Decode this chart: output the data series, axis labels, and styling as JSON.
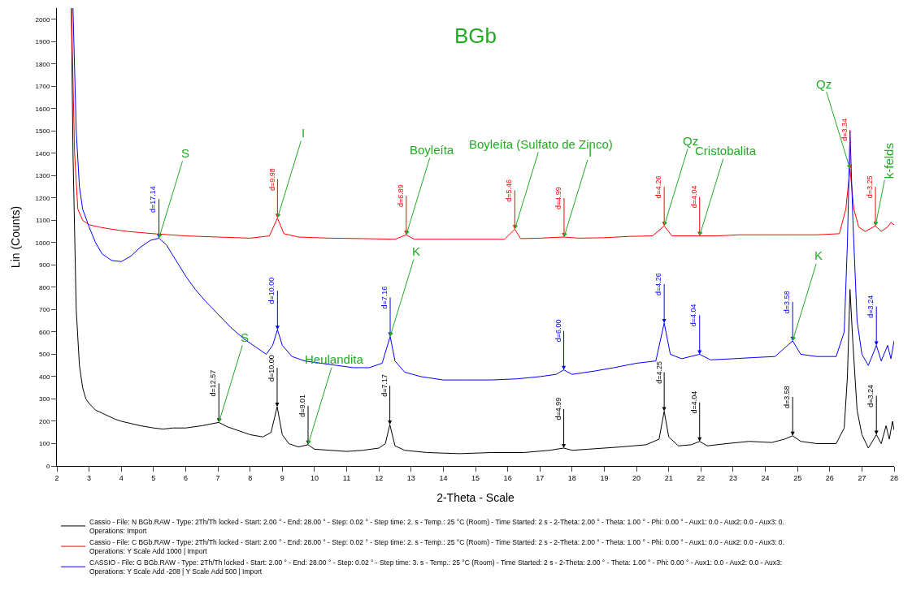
{
  "chart_data": {
    "type": "line",
    "title": "BGb",
    "xlabel": "2-Theta - Scale",
    "ylabel": "Lin (Counts)",
    "xlim": [
      2,
      28
    ],
    "xticks": [
      2,
      3,
      4,
      5,
      6,
      7,
      8,
      9,
      10,
      11,
      12,
      13,
      14,
      15,
      16,
      17,
      18,
      19,
      20,
      21,
      22,
      23,
      24,
      25,
      26,
      27,
      28
    ],
    "ylim": [
      0,
      2050
    ],
    "yticks": [
      0,
      100,
      200,
      300,
      400,
      500,
      600,
      700,
      800,
      900,
      1000,
      1100,
      1200,
      1300,
      1400,
      1500,
      1600,
      1700,
      1800,
      1900,
      2000
    ],
    "legend": "bottom",
    "marker": "none",
    "line_style": "solid",
    "series": [
      {
        "name": "Cassio - File: N BGb.RAW - Type: 2Th/Th locked - Start: 2.00 ° - End: 28.00 ° - Step: 0.02 ° - Step time: 2. s - Temp.: 25 °C (Room) - Time Started: 2 s - 2-Theta: 2.00 ° - Theta: 1.00 ° - Phi: 0.00 ° - Aux1: 0.0 - Aux2: 0.0 - Aux3: 0.\nOperations: Import",
        "color": "#000000",
        "x": [
          2.45,
          2.5,
          2.6,
          2.7,
          2.8,
          2.9,
          3.0,
          3.2,
          3.5,
          3.8,
          4.0,
          4.3,
          4.6,
          5.0,
          5.3,
          5.6,
          6.0,
          6.5,
          7.03,
          7.3,
          7.6,
          8.0,
          8.4,
          8.65,
          8.84,
          9.0,
          9.2,
          9.5,
          9.8,
          10.0,
          10.5,
          11.0,
          11.5,
          12.0,
          12.2,
          12.34,
          12.5,
          12.8,
          13.5,
          14.5,
          15.5,
          16.5,
          17.3,
          17.74,
          18.0,
          18.5,
          19.5,
          20.3,
          20.7,
          20.86,
          21.0,
          21.3,
          21.7,
          21.96,
          22.2,
          22.8,
          23.5,
          24.2,
          24.6,
          24.85,
          25.1,
          25.6,
          26.2,
          26.45,
          26.55,
          26.63,
          26.72,
          26.85,
          27.0,
          27.2,
          27.45,
          27.6,
          27.75,
          27.85,
          27.95,
          28.0
        ],
        "values": [
          2050,
          1400,
          700,
          450,
          350,
          300,
          280,
          250,
          230,
          210,
          200,
          190,
          180,
          170,
          165,
          170,
          170,
          180,
          195,
          175,
          160,
          140,
          130,
          150,
          265,
          140,
          100,
          85,
          95,
          75,
          70,
          65,
          70,
          80,
          100,
          185,
          90,
          70,
          60,
          55,
          60,
          60,
          70,
          80,
          70,
          75,
          85,
          95,
          120,
          245,
          130,
          90,
          95,
          110,
          90,
          100,
          110,
          105,
          120,
          135,
          110,
          100,
          100,
          170,
          400,
          790,
          550,
          250,
          140,
          80,
          140,
          100,
          180,
          120,
          200,
          160
        ]
      },
      {
        "name": "Cassio - File: C BGb.RAW - Type: 2Th/Th locked - Start: 2.00 ° - End: 28.00 ° - Step: 0.02 ° - Step time: 2. s - Temp.: 25 °C (Room) - Time Started: 2 s - 2-Theta: 2.00 ° - Theta: 1.00 ° - Phi: 0.00 ° - Aux1: 0.0 - Aux2: 0.0 - Aux3: 0.\nOperations: Y Scale Add 1000 | Import",
        "color": "#ff0000",
        "x": [
          2.45,
          2.55,
          2.65,
          2.8,
          3.0,
          3.3,
          3.7,
          4.2,
          5.0,
          6.0,
          7.0,
          8.0,
          8.6,
          8.85,
          9.05,
          9.5,
          10.5,
          11.5,
          12.5,
          12.85,
          13.1,
          14.0,
          15.0,
          15.9,
          16.22,
          16.4,
          17.0,
          17.75,
          18.2,
          19.0,
          19.8,
          20.5,
          20.86,
          21.1,
          21.96,
          22.5,
          23.2,
          24.0,
          24.8,
          25.6,
          26.3,
          26.5,
          26.63,
          26.75,
          26.9,
          27.1,
          27.42,
          27.6,
          27.8,
          27.9,
          28.0
        ],
        "values": [
          2050,
          1400,
          1150,
          1100,
          1080,
          1070,
          1060,
          1050,
          1040,
          1030,
          1025,
          1020,
          1030,
          1110,
          1040,
          1025,
          1020,
          1018,
          1015,
          1035,
          1015,
          1015,
          1015,
          1015,
          1060,
          1018,
          1020,
          1025,
          1020,
          1022,
          1028,
          1030,
          1075,
          1030,
          1030,
          1030,
          1035,
          1035,
          1035,
          1035,
          1040,
          1150,
          1330,
          1150,
          1070,
          1050,
          1075,
          1050,
          1070,
          1090,
          1080
        ]
      },
      {
        "name": "CASSIO - File: G BGb.RAW - Type: 2Th/Th locked - Start: 2.00 ° - End: 28.00 ° - Step: 0.02 ° - Step time: 3. s - Temp.: 25 °C (Room) - Time Started: 2 s - 2-Theta: 2.00 ° - Theta: 1.00 ° - Phi: 0.00 ° - Aux1: 0.0 - Aux2: 0.0 - Aux3:\nOperations: Y Scale Add -208 | Y Scale Add 500 | Import",
        "color": "#0000ff",
        "x": [
          2.5,
          2.6,
          2.7,
          2.8,
          3.0,
          3.2,
          3.4,
          3.7,
          4.0,
          4.3,
          4.6,
          4.9,
          5.17,
          5.4,
          5.7,
          6.0,
          6.3,
          6.6,
          7.0,
          7.4,
          7.8,
          8.2,
          8.5,
          8.7,
          8.85,
          9.0,
          9.3,
          9.7,
          10.2,
          10.7,
          11.2,
          11.7,
          12.1,
          12.35,
          12.5,
          12.8,
          13.3,
          14.0,
          14.7,
          15.5,
          16.3,
          17.0,
          17.5,
          17.74,
          18.0,
          18.7,
          19.3,
          20.0,
          20.6,
          20.86,
          21.05,
          21.4,
          21.96,
          22.3,
          23.0,
          23.6,
          24.3,
          24.85,
          25.1,
          25.6,
          26.2,
          26.45,
          26.55,
          26.63,
          26.72,
          26.85,
          27.0,
          27.2,
          27.45,
          27.6,
          27.8,
          27.9,
          28.0
        ],
        "values": [
          2050,
          1500,
          1250,
          1150,
          1070,
          1000,
          950,
          920,
          915,
          940,
          980,
          1010,
          1020,
          990,
          920,
          850,
          790,
          740,
          680,
          620,
          570,
          530,
          500,
          540,
          610,
          540,
          490,
          470,
          460,
          450,
          440,
          440,
          460,
          580,
          470,
          420,
          400,
          385,
          385,
          385,
          390,
          400,
          410,
          430,
          410,
          425,
          440,
          460,
          470,
          640,
          500,
          480,
          500,
          475,
          480,
          485,
          490,
          560,
          500,
          490,
          490,
          600,
          1000,
          1500,
          1100,
          650,
          500,
          450,
          540,
          470,
          540,
          480,
          560
        ]
      }
    ],
    "annotations": [
      {
        "text": "d=12.57",
        "x": 7.03,
        "y": 195
      },
      {
        "text": "d=10.00",
        "x": 8.84,
        "y": 265
      },
      {
        "text": "d=9.01",
        "x": 9.8,
        "y": 95
      },
      {
        "text": "d=7.17",
        "x": 12.34,
        "y": 185
      },
      {
        "text": "d=4.99",
        "x": 17.74,
        "y": 80
      },
      {
        "text": "d=4.25",
        "x": 20.86,
        "y": 245
      },
      {
        "text": "d=4.04",
        "x": 21.96,
        "y": 110
      },
      {
        "text": "d=3.58",
        "x": 24.85,
        "y": 135
      },
      {
        "text": "d=3.24",
        "x": 27.45,
        "y": 140
      },
      {
        "text": "d=9.98",
        "x": 8.85,
        "y": 1110
      },
      {
        "text": "d=6.89",
        "x": 12.85,
        "y": 1035
      },
      {
        "text": "d=5.46",
        "x": 16.22,
        "y": 1060
      },
      {
        "text": "d=4.99",
        "x": 17.75,
        "y": 1025
      },
      {
        "text": "d=4.26",
        "x": 20.86,
        "y": 1075
      },
      {
        "text": "d=4.04",
        "x": 21.96,
        "y": 1030
      },
      {
        "text": "d=3.34",
        "x": 26.63,
        "y": 1330
      },
      {
        "text": "d=3.25",
        "x": 27.42,
        "y": 1075
      },
      {
        "text": "d=17.14",
        "x": 5.17,
        "y": 1020
      },
      {
        "text": "d=10.00",
        "x": 8.85,
        "y": 610
      },
      {
        "text": "d=7.16",
        "x": 12.35,
        "y": 580
      },
      {
        "text": "d=6.00",
        "x": 17.74,
        "y": 430
      },
      {
        "text": "d=4.26",
        "x": 20.86,
        "y": 640
      },
      {
        "text": "d=4.04",
        "x": 21.96,
        "y": 500
      },
      {
        "text": "d=3.58",
        "x": 24.85,
        "y": 560
      },
      {
        "text": "d=3.24",
        "x": 27.45,
        "y": 540
      },
      {
        "text": "S",
        "x": 5.17,
        "y": 1020
      },
      {
        "text": "I",
        "x": 8.85,
        "y": 1110
      },
      {
        "text": "Boyleíta",
        "x": 12.85,
        "y": 1035
      },
      {
        "text": "Boyleíta (Sulfato de Zinco)",
        "x": 16.22,
        "y": 1060
      },
      {
        "text": "I",
        "x": 17.75,
        "y": 1025
      },
      {
        "text": "Qz",
        "x": 20.86,
        "y": 1075
      },
      {
        "text": "Cristobalita",
        "x": 21.96,
        "y": 1030
      },
      {
        "text": "Qz",
        "x": 26.63,
        "y": 1330
      },
      {
        "text": "k-felds",
        "x": 27.42,
        "y": 1075
      },
      {
        "text": "K",
        "x": 12.35,
        "y": 580
      },
      {
        "text": "K",
        "x": 24.85,
        "y": 560
      },
      {
        "text": "S",
        "x": 7.03,
        "y": 195
      },
      {
        "text": "Heulandita",
        "x": 9.8,
        "y": 95
      }
    ]
  }
}
